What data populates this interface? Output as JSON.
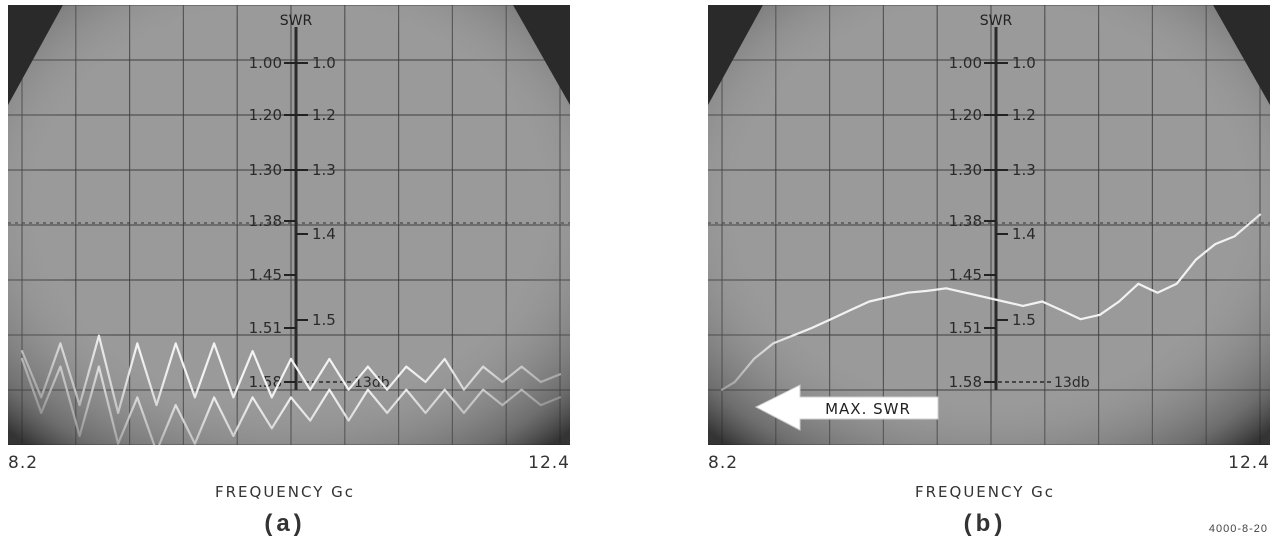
{
  "figure_id": "4000-8-20",
  "colors": {
    "screen": "#9a9a9a",
    "grid": "#3a3a3a",
    "trace": "#f2f2f2",
    "vignette": "#2c2c2c"
  },
  "panels": [
    {
      "label": "(a)",
      "xmin_label": "8.2",
      "xmax_label": "12.4",
      "xlabel": "FREQUENCY  Gc",
      "annotation": ""
    },
    {
      "label": "(b)",
      "xmin_label": "8.2",
      "xmax_label": "12.4",
      "xlabel": "FREQUENCY  Gc",
      "annotation": "MAX. SWR"
    }
  ],
  "chart_data": [
    {
      "type": "line",
      "title": "SWR",
      "xlabel": "FREQUENCY  Gc",
      "xlim": [
        8.2,
        12.4
      ],
      "grid": true,
      "swr_scale_left": [
        "1.00",
        "1.20",
        "1.30",
        "1.38",
        "1.45",
        "1.51",
        "1.58"
      ],
      "swr_scale_right": [
        "1.0",
        "1.2",
        "1.3",
        "1.4",
        "1.5"
      ],
      "reference_label": "13db",
      "swr_ticks": [
        1.0,
        1.2,
        1.3,
        1.38,
        1.45,
        1.51,
        1.58
      ],
      "series": [
        {
          "x": [
            8.2,
            8.35,
            8.5,
            8.65,
            8.8,
            8.95,
            9.1,
            9.25,
            9.4,
            9.55,
            9.7,
            9.85,
            10.0,
            10.15,
            10.3,
            10.45,
            10.6,
            10.75,
            10.9,
            11.05,
            11.2,
            11.35,
            11.5,
            11.65,
            11.8,
            11.95,
            12.1,
            12.25,
            12.4
          ],
          "y": [
            1.54,
            1.6,
            1.53,
            1.61,
            1.52,
            1.62,
            1.53,
            1.61,
            1.53,
            1.6,
            1.53,
            1.6,
            1.54,
            1.6,
            1.55,
            1.59,
            1.55,
            1.59,
            1.56,
            1.59,
            1.56,
            1.58,
            1.55,
            1.59,
            1.56,
            1.58,
            1.56,
            1.58,
            1.57
          ]
        },
        {
          "x": [
            8.2,
            8.35,
            8.5,
            8.65,
            8.8,
            8.95,
            9.1,
            9.25,
            9.4,
            9.55,
            9.7,
            9.85,
            10.0,
            10.15,
            10.3,
            10.45,
            10.6,
            10.75,
            10.9,
            11.05,
            11.2,
            11.35,
            11.5,
            11.65,
            11.8,
            11.95,
            12.1,
            12.25,
            12.4
          ],
          "y": [
            1.55,
            1.62,
            1.56,
            1.65,
            1.56,
            1.66,
            1.6,
            1.67,
            1.61,
            1.66,
            1.6,
            1.65,
            1.6,
            1.64,
            1.6,
            1.63,
            1.59,
            1.63,
            1.59,
            1.62,
            1.59,
            1.62,
            1.59,
            1.62,
            1.59,
            1.61,
            1.59,
            1.61,
            1.6
          ]
        }
      ]
    },
    {
      "type": "line",
      "title": "SWR",
      "xlabel": "FREQUENCY  Gc",
      "xlim": [
        8.2,
        12.4
      ],
      "grid": true,
      "swr_scale_left": [
        "1.00",
        "1.20",
        "1.30",
        "1.38",
        "1.45",
        "1.51",
        "1.58"
      ],
      "swr_scale_right": [
        "1.0",
        "1.2",
        "1.3",
        "1.4",
        "1.5"
      ],
      "reference_label": "13db",
      "swr_ticks": [
        1.0,
        1.2,
        1.3,
        1.38,
        1.45,
        1.51,
        1.58
      ],
      "annotation": "MAX. SWR",
      "series": [
        {
          "x": [
            8.2,
            8.3,
            8.45,
            8.6,
            8.75,
            8.9,
            9.05,
            9.2,
            9.35,
            9.5,
            9.65,
            9.8,
            9.95,
            10.1,
            10.25,
            10.4,
            10.55,
            10.7,
            10.85,
            11.0,
            11.15,
            11.3,
            11.45,
            11.6,
            11.75,
            11.9,
            12.05,
            12.2,
            12.4
          ],
          "y": [
            1.59,
            1.58,
            1.55,
            1.53,
            1.52,
            1.51,
            1.5,
            1.49,
            1.48,
            1.475,
            1.47,
            1.468,
            1.465,
            1.47,
            1.475,
            1.48,
            1.485,
            1.48,
            1.49,
            1.5,
            1.495,
            1.48,
            1.46,
            1.47,
            1.46,
            1.43,
            1.41,
            1.4,
            1.37
          ]
        }
      ]
    }
  ]
}
